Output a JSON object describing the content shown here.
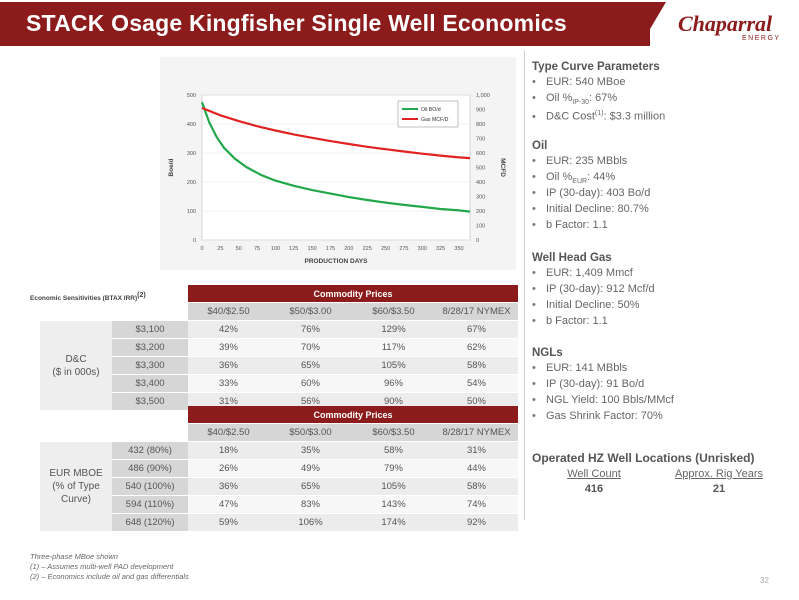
{
  "header": {
    "title": "STACK Osage Kingfisher Single Well Economics",
    "logo": "Chaparral",
    "logo_sub": "ENERGY"
  },
  "chart_data": {
    "type": "line",
    "xlabel": "PRODUCTION DAYS",
    "ylabel_left": "Boe/d",
    "ylabel_right": "MCFD",
    "x_ticks": [
      "0",
      "25",
      "50",
      "75",
      "100",
      "125",
      "150",
      "175",
      "200",
      "225",
      "250",
      "275",
      "300",
      "325",
      "350"
    ],
    "y_left_ticks": [
      "0",
      "100",
      "200",
      "300",
      "400",
      "500"
    ],
    "y_right_ticks": [
      "0",
      "100",
      "200",
      "300",
      "400",
      "500",
      "600",
      "700",
      "800",
      "900",
      "1,000"
    ],
    "ylim_left": [
      0,
      500
    ],
    "ylim_right": [
      0,
      1000
    ],
    "xlim": [
      0,
      365
    ],
    "series": [
      {
        "name": "Oil BO/d",
        "axis": "left",
        "color": "#22a84a",
        "x": [
          0,
          10,
          20,
          30,
          45,
          60,
          80,
          100,
          125,
          150,
          175,
          200,
          225,
          250,
          275,
          300,
          325,
          350,
          365
        ],
        "y": [
          475,
          405,
          355,
          318,
          280,
          252,
          225,
          205,
          187,
          172,
          160,
          148,
          138,
          129,
          121,
          114,
          107,
          102,
          98
        ]
      },
      {
        "name": "Gas MCF/D",
        "axis": "right",
        "color": "#e02222",
        "x": [
          0,
          25,
          50,
          75,
          100,
          125,
          150,
          175,
          200,
          225,
          250,
          275,
          300,
          325,
          350,
          365
        ],
        "y": [
          910,
          860,
          820,
          785,
          755,
          728,
          705,
          682,
          662,
          643,
          626,
          610,
          595,
          582,
          570,
          565
        ]
      }
    ]
  },
  "sens_label": "Economic Sensitivities (BTAX IRR)",
  "sens_label_sup": "(2)",
  "table1": {
    "header": "Commodity Prices",
    "cols": [
      "$40/$2.50",
      "$50/$3.00",
      "$60/$3.50",
      "8/28/17 NYMEX"
    ],
    "side_label_1": "D&C",
    "side_label_2": "($ in 000s)",
    "rows": [
      {
        "label": "$3,100",
        "values": [
          "42%",
          "76%",
          "129%",
          "67%"
        ]
      },
      {
        "label": "$3,200",
        "values": [
          "39%",
          "70%",
          "117%",
          "62%"
        ]
      },
      {
        "label": "$3,300",
        "values": [
          "36%",
          "65%",
          "105%",
          "58%"
        ]
      },
      {
        "label": "$3,400",
        "values": [
          "33%",
          "60%",
          "96%",
          "54%"
        ]
      },
      {
        "label": "$3,500",
        "values": [
          "31%",
          "56%",
          "90%",
          "50%"
        ]
      }
    ]
  },
  "table2": {
    "header": "Commodity Prices",
    "cols": [
      "$40/$2.50",
      "$50/$3.00",
      "$60/$3.50",
      "8/28/17 NYMEX"
    ],
    "side_label_1": "EUR MBOE",
    "side_label_2": "(% of Type",
    "side_label_3": "Curve)",
    "rows": [
      {
        "label": "432 (80%)",
        "values": [
          "18%",
          "35%",
          "58%",
          "31%"
        ]
      },
      {
        "label": "486 (90%)",
        "values": [
          "26%",
          "49%",
          "79%",
          "44%"
        ]
      },
      {
        "label": "540 (100%)",
        "values": [
          "36%",
          "65%",
          "105%",
          "58%"
        ]
      },
      {
        "label": "594 (110%)",
        "values": [
          "47%",
          "83%",
          "143%",
          "74%"
        ]
      },
      {
        "label": "648 (120%)",
        "values": [
          "59%",
          "106%",
          "174%",
          "92%"
        ]
      }
    ]
  },
  "type_curve": {
    "title": "Type Curve Parameters",
    "eur": "EUR: 540 MBoe",
    "oil_pre": "Oil %",
    "oil_sub": "IP-30",
    "oil_post": ": 67%",
    "dc_pre": "D&C Cost",
    "dc_sup": "(1)",
    "dc_post": ": $3.3 million"
  },
  "oil": {
    "title": "Oil",
    "eur": "EUR: 235 MBbls",
    "pct_pre": "Oil %",
    "pct_sub": "EUR",
    "pct_post": ": 44%",
    "ip": "IP (30-day): 403 Bo/d",
    "decline": "Initial Decline: 80.7%",
    "b": "b Factor: 1.1"
  },
  "gas": {
    "title": "Well Head Gas",
    "items": [
      "EUR: 1,409 Mmcf",
      "IP (30-day): 912 Mcf/d",
      "Initial Decline: 50%",
      "b Factor: 1.1"
    ]
  },
  "ngl": {
    "title": "NGLs",
    "items": [
      "EUR: 141 MBbls",
      "IP (30-day): 91 Bo/d",
      "NGL Yield: 100 Bbls/MMcf",
      "Gas Shrink Factor: 70%"
    ]
  },
  "locations": {
    "title": "Operated HZ Well Locations (Unrisked)",
    "well_count_label": "Well Count",
    "well_count": "416",
    "rig_years_label": "Approx. Rig Years",
    "rig_years": "21"
  },
  "footnotes": [
    "Three-phase MBoe shown",
    "(1) – Assumes multi-well PAD development",
    "(2) – Economics include oil and gas differentials"
  ],
  "page_number": "32",
  "colors": {
    "brand_red": "#8c1b1b",
    "oil_green": "#22a84a",
    "gas_red": "#e02222"
  }
}
